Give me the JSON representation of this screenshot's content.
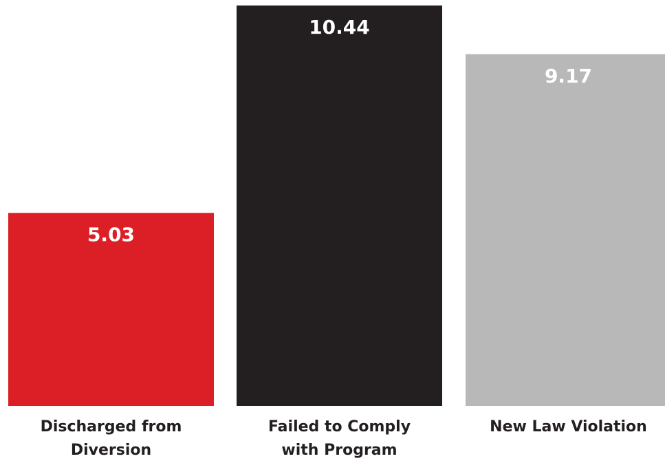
{
  "chart_data": {
    "type": "bar",
    "title": "",
    "xlabel": "",
    "ylabel": "",
    "categories": [
      "Discharged from Diversion",
      "Failed to Comply with Program",
      "New Law Violation"
    ],
    "category_lines": [
      [
        "Discharged from",
        "Diversion"
      ],
      [
        "Failed to Comply",
        "with Program"
      ],
      [
        "New Law Violation"
      ]
    ],
    "values": [
      5.03,
      10.44,
      9.17
    ],
    "value_labels": [
      "5.03",
      "10.44",
      "9.17"
    ],
    "colors": [
      "#dc1f26",
      "#231f20",
      "#b8b8b8"
    ],
    "ylim": [
      0,
      10.44
    ],
    "grid": false,
    "legend": "none"
  }
}
